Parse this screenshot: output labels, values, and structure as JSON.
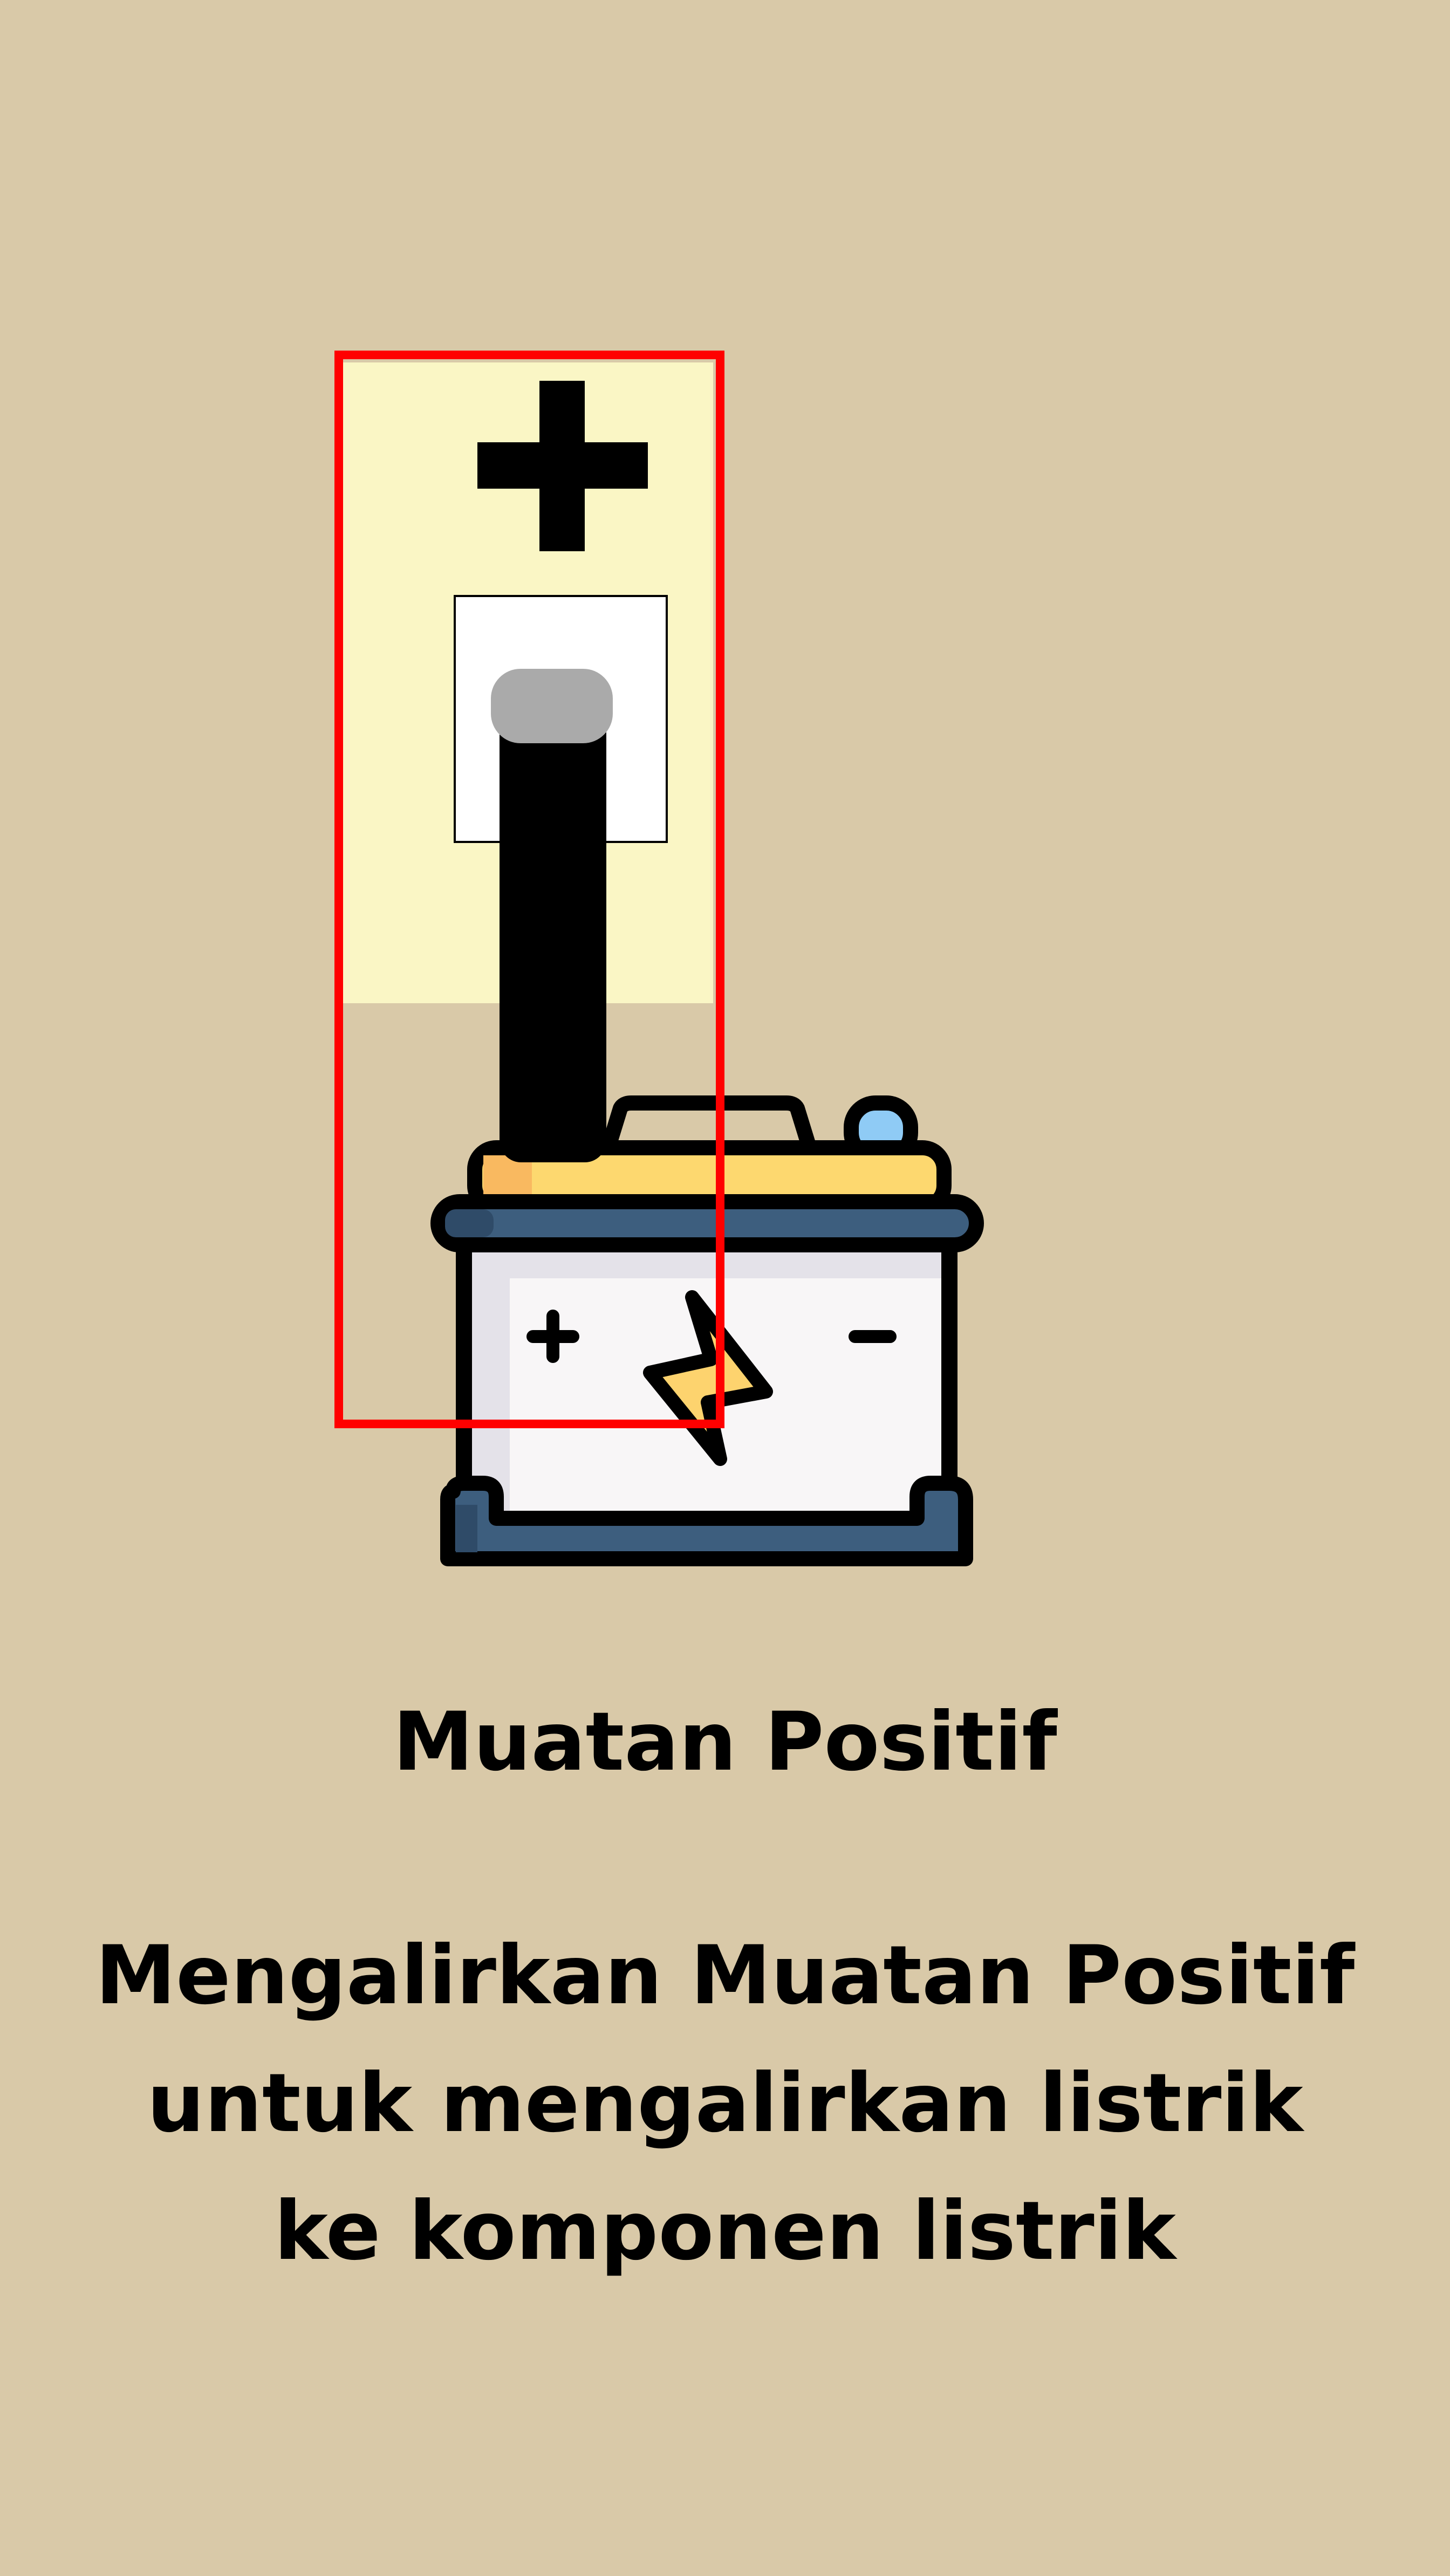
{
  "colors": {
    "background": "#D9C9A8",
    "highlight": "#FAF6C5",
    "selection_outline": "#FF0000",
    "terminal_cap": "#AAAAAA",
    "battery_lid": "#FDD86F",
    "battery_band": "#3D5E7E",
    "battery_body": "#F8F6F7",
    "bolt": "#FDD36E",
    "vent_cap": "#8FCBF5"
  },
  "illustration": {
    "plus_symbol": "+",
    "battery_plus": "+",
    "battery_minus": "−"
  },
  "title": "Muatan Positif",
  "description": {
    "line1": "Mengalirkan Muatan Positif",
    "line2": "untuk mengalirkan listrik",
    "line3": "ke komponen listrik"
  }
}
